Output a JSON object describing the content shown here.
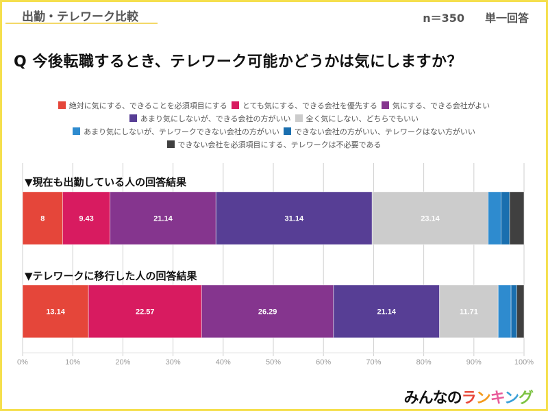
{
  "header": {
    "tag": "出勤・テレワーク比較",
    "sample_size": "n＝350",
    "answer_type": "単一回答"
  },
  "question": "Q 今後転職するとき、テレワーク可能かどうかは気にしますか？",
  "legend_rows": [
    [
      0,
      1,
      2
    ],
    [
      3,
      4
    ],
    [
      5,
      6
    ],
    [
      7
    ]
  ],
  "logo": {
    "parts": [
      {
        "text": "みんなの",
        "color": "#111111"
      },
      {
        "text": "ラ",
        "color": "#e8483a"
      },
      {
        "text": "ン",
        "color": "#f39a1e"
      },
      {
        "text": "キ",
        "color": "#e85c9a"
      },
      {
        "text": "ン",
        "color": "#3aa0d8"
      },
      {
        "text": "グ",
        "color": "#7cc242"
      }
    ]
  },
  "chart_data": {
    "type": "bar",
    "orientation": "horizontal",
    "stacked": true,
    "normalized_percent": true,
    "title": "Q 今後転職するとき、テレワーク可能かどうかは気にしますか？",
    "xlabel": "",
    "ylabel": "",
    "xlim": [
      0,
      100
    ],
    "x_ticks": [
      "0%",
      "10%",
      "20%",
      "30%",
      "40%",
      "50%",
      "60%",
      "70%",
      "80%",
      "90%",
      "100%"
    ],
    "grid": true,
    "legend_position": "top",
    "categories": [
      "▼現在も出勤している人の回答結果",
      "▼テレワークに移行した人の回答結果"
    ],
    "series": [
      {
        "name": "絶対に気にする、できることを必須項目にする",
        "color": "#e5463a",
        "values": [
          8,
          13.14
        ],
        "labels": [
          "8",
          "13.14"
        ]
      },
      {
        "name": "とても気にする、できる会社を優先する",
        "color": "#d81b60",
        "values": [
          9.43,
          22.57
        ],
        "labels": [
          "9.43",
          "22.57"
        ]
      },
      {
        "name": "気にする、できる会社がよい",
        "color": "#85358e",
        "values": [
          21.14,
          26.29
        ],
        "labels": [
          "21.14",
          "26.29"
        ]
      },
      {
        "name": "あまり気にしないが、できる会社の方がいい",
        "color": "#573e95",
        "values": [
          31.14,
          21.14
        ],
        "labels": [
          "31.14",
          "21.14"
        ]
      },
      {
        "name": "全く気にしない、どちらでもいい",
        "color": "#cccccc",
        "values": [
          23.14,
          11.71
        ],
        "labels": [
          "23.14",
          "11.71"
        ]
      },
      {
        "name": "あまり気にしないが、テレワークできない会社の方がいい",
        "color": "#2e8bcf",
        "values": [
          2.57,
          2.57
        ],
        "labels": [
          "",
          ""
        ]
      },
      {
        "name": "できない会社の方がいい、テレワークはない方がいい",
        "color": "#1a6faf",
        "values": [
          1.71,
          1.14
        ],
        "labels": [
          "",
          ""
        ]
      },
      {
        "name": "できない会社を必須項目にする、テレワークは不必要である",
        "color": "#404040",
        "values": [
          2.86,
          1.43
        ],
        "labels": [
          "",
          ""
        ]
      }
    ]
  }
}
